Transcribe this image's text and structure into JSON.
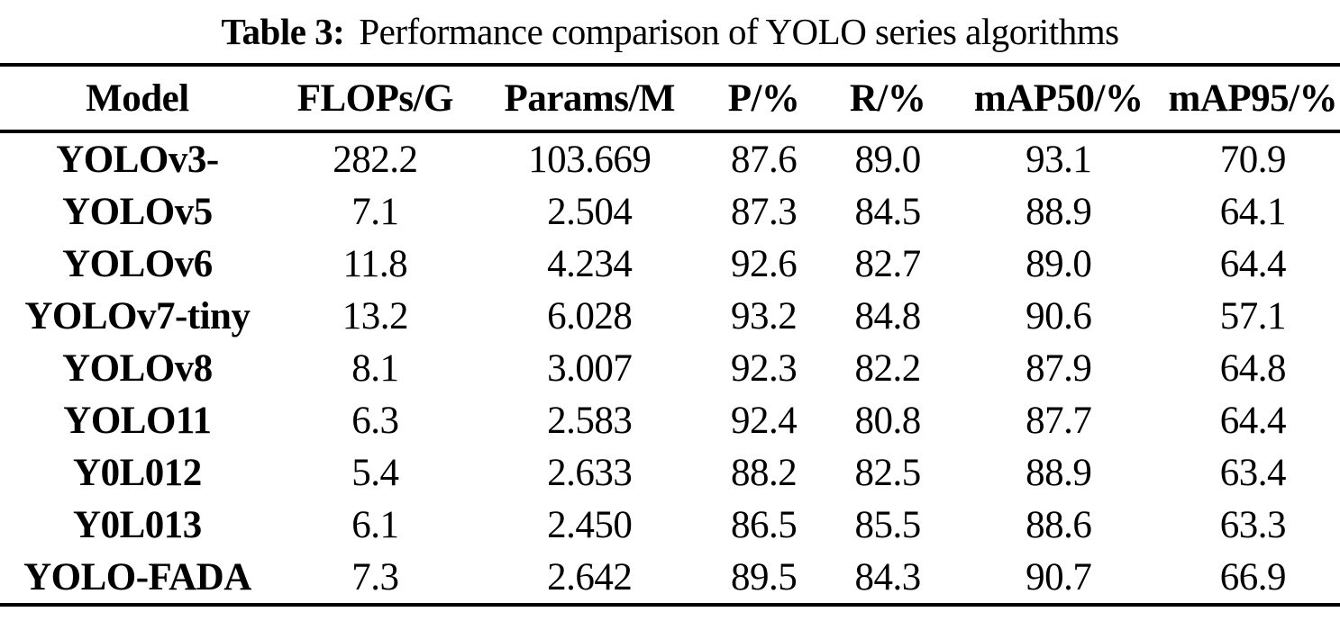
{
  "caption": {
    "label": "Table 3:",
    "text": "Performance comparison of YOLO series algorithms"
  },
  "table": {
    "columns": [
      "Model",
      "FLOPs/G",
      "Params/M",
      "P/%",
      "R/%",
      "mAP50/%",
      "mAP95/%"
    ],
    "rows": [
      {
        "model": "YOLOv3-",
        "values": [
          "282.2",
          "103.669",
          "87.6",
          "89.0",
          "93.1",
          "70.9"
        ]
      },
      {
        "model": "YOLOv5",
        "values": [
          "7.1",
          "2.504",
          "87.3",
          "84.5",
          "88.9",
          "64.1"
        ]
      },
      {
        "model": "YOLOv6",
        "values": [
          "11.8",
          "4.234",
          "92.6",
          "82.7",
          "89.0",
          "64.4"
        ]
      },
      {
        "model": "YOLOv7-tiny",
        "values": [
          "13.2",
          "6.028",
          "93.2",
          "84.8",
          "90.6",
          "57.1"
        ]
      },
      {
        "model": "YOLOv8",
        "values": [
          "8.1",
          "3.007",
          "92.3",
          "82.2",
          "87.9",
          "64.8"
        ]
      },
      {
        "model": "YOLO11",
        "values": [
          "6.3",
          "2.583",
          "92.4",
          "80.8",
          "87.7",
          "64.4"
        ]
      },
      {
        "model": "Y0L012",
        "values": [
          "5.4",
          "2.633",
          "88.2",
          "82.5",
          "88.9",
          "63.4"
        ]
      },
      {
        "model": "Y0L013",
        "values": [
          "6.1",
          "2.450",
          "86.5",
          "85.5",
          "88.6",
          "63.3"
        ]
      },
      {
        "model": "YOLO-FADA",
        "values": [
          "7.3",
          "2.642",
          "89.5",
          "84.3",
          "90.7",
          "66.9"
        ]
      }
    ]
  },
  "colors": {
    "text": "#000000",
    "background": "#ffffff",
    "rule": "#000000"
  }
}
